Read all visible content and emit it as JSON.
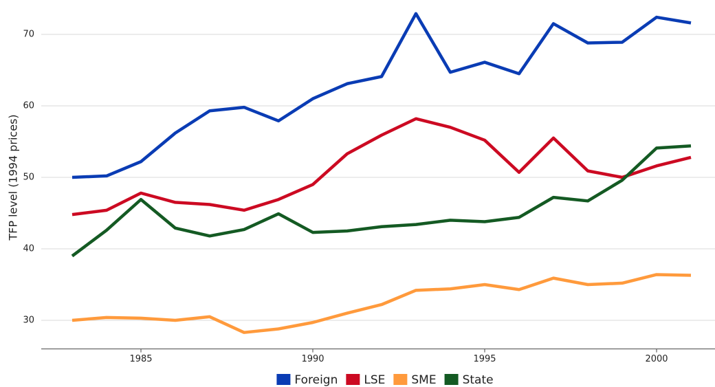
{
  "chart_data": {
    "type": "line",
    "y_label": "TFP level (1994 prices)",
    "x": [
      1983,
      1984,
      1985,
      1986,
      1987,
      1988,
      1989,
      1990,
      1991,
      1992,
      1993,
      1994,
      1995,
      1996,
      1997,
      1998,
      1999,
      2000,
      2001
    ],
    "series": [
      {
        "name": "Foreign",
        "color": "#0a3cb4",
        "values": [
          50.0,
          50.2,
          52.2,
          56.2,
          59.3,
          59.8,
          57.9,
          61.0,
          63.1,
          64.1,
          72.9,
          64.7,
          66.1,
          64.5,
          71.5,
          68.8,
          68.9,
          72.4,
          71.6
        ]
      },
      {
        "name": "LSE",
        "color": "#cc0a22",
        "values": [
          44.8,
          45.4,
          47.8,
          46.5,
          46.2,
          45.4,
          46.9,
          49.0,
          53.3,
          55.9,
          58.2,
          57.0,
          55.2,
          50.7,
          55.5,
          50.9,
          50.0,
          51.6,
          52.8
        ]
      },
      {
        "name": "SME",
        "color": "#ff9a3c",
        "values": [
          30.0,
          30.4,
          30.3,
          30.0,
          30.5,
          28.3,
          28.8,
          29.7,
          31.0,
          32.2,
          34.2,
          34.4,
          35.0,
          34.3,
          35.9,
          35.0,
          35.2,
          36.4,
          36.3
        ]
      },
      {
        "name": "State",
        "color": "#145a23",
        "values": [
          39.0,
          42.6,
          46.9,
          42.9,
          41.8,
          42.7,
          44.9,
          42.3,
          42.5,
          43.1,
          43.4,
          44.0,
          43.8,
          44.4,
          47.2,
          46.7,
          49.6,
          54.1,
          54.4
        ]
      }
    ],
    "xlim": [
      1982.1,
      2001.7
    ],
    "xticks": [
      1985,
      1990,
      1995,
      2000
    ],
    "ylim": [
      26,
      74
    ],
    "yticks": [
      30,
      40,
      50,
      60,
      70
    ],
    "grid": true,
    "legend": "bottom"
  }
}
